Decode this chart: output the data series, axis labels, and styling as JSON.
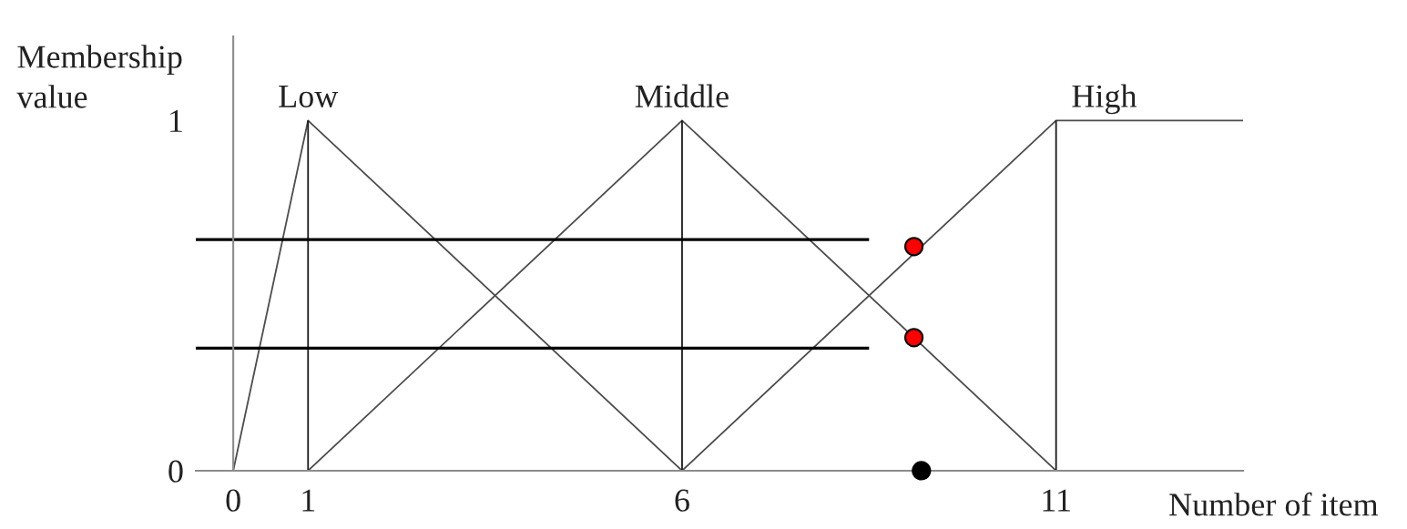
{
  "chart_data": {
    "type": "line",
    "xlabel": "Number of item",
    "ylabel": "Membership\nvalue",
    "xlim": [
      -0.5,
      13.5
    ],
    "xticks": [
      0,
      1,
      6,
      11
    ],
    "ylim": [
      0,
      1.24
    ],
    "yticks": [
      0,
      1
    ],
    "grid": false,
    "legend": false,
    "marker": "none",
    "line_style": "solid",
    "series": [
      {
        "name": "Low",
        "color": "#4d4d4d",
        "x": [
          0,
          1,
          6
        ],
        "values": [
          0,
          1,
          0
        ]
      },
      {
        "name": "Middle",
        "color": "#4d4d4d",
        "x": [
          1,
          6,
          11
        ],
        "values": [
          0,
          1,
          0
        ]
      },
      {
        "name": "High",
        "color": "#4d4d4d",
        "x": [
          6,
          11,
          13.5
        ],
        "values": [
          0,
          1,
          1
        ]
      },
      {
        "color": "#1a1a1a",
        "x": [
          1,
          1
        ],
        "values": [
          0,
          1
        ]
      },
      {
        "color": "#1a1a1a",
        "x": [
          6,
          6
        ],
        "values": [
          0,
          1
        ]
      },
      {
        "color": "#1a1a1a",
        "x": [
          11,
          11
        ],
        "values": [
          0,
          1
        ]
      },
      {
        "color": "#000000",
        "x": [
          -0.5,
          8.5
        ],
        "values": [
          0.66,
          0.66
        ]
      },
      {
        "color": "#000000",
        "x": [
          -0.5,
          8.5
        ],
        "values": [
          0.35,
          0.35
        ]
      },
      {
        "type": "scatter",
        "marker": "circle",
        "x": [
          9.1,
          9.1,
          9.2
        ],
        "values": [
          0.64,
          0.38,
          0
        ],
        "colors": [
          "#ff0000",
          "#ff0000",
          "#000000"
        ]
      }
    ]
  }
}
